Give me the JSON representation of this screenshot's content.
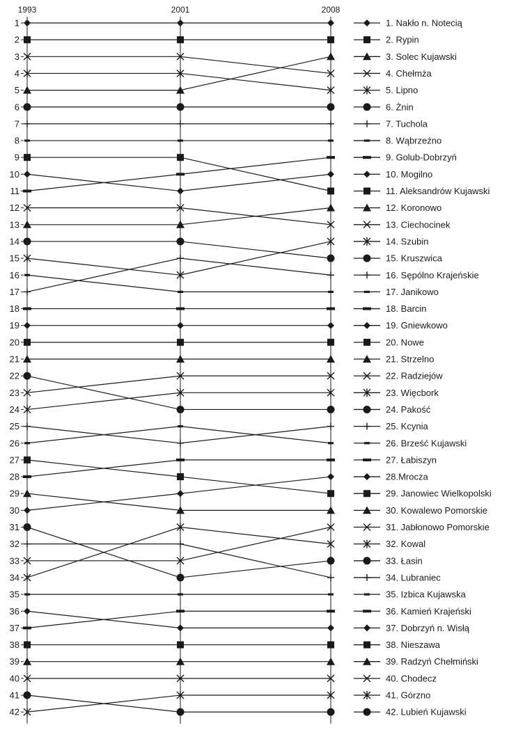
{
  "chart_data": {
    "type": "line",
    "x": [
      "1993",
      "2001",
      "2008"
    ],
    "y_ticks": [
      "1",
      "2",
      "3",
      "4",
      "5",
      "6",
      "7",
      "8",
      "9",
      "10",
      "11",
      "12",
      "13",
      "14",
      "15",
      "16",
      "17",
      "18",
      "19",
      "20",
      "21",
      "22",
      "23",
      "24",
      "25",
      "26",
      "27",
      "28",
      "29",
      "30",
      "31",
      "32",
      "33",
      "34",
      "35",
      "36",
      "37",
      "38",
      "39",
      "40",
      "41",
      "42"
    ],
    "ylim": [
      1,
      42
    ],
    "y_inverted": true,
    "legend_position": "right",
    "series": [
      {
        "name": "1. Nakło n. Notecią",
        "marker": "diamond",
        "values": [
          1,
          1,
          1
        ]
      },
      {
        "name": "2. Rypin",
        "marker": "square",
        "values": [
          2,
          2,
          2
        ]
      },
      {
        "name": "3. Solec Kujawski",
        "marker": "triangle",
        "values": [
          5,
          5,
          3
        ]
      },
      {
        "name": "4. Chełmża",
        "marker": "x",
        "values": [
          3,
          3,
          4
        ]
      },
      {
        "name": "5. Lipno",
        "marker": "asterisk",
        "values": [
          4,
          4,
          5
        ]
      },
      {
        "name": "6. Żnin",
        "marker": "circle",
        "values": [
          6,
          6,
          6
        ]
      },
      {
        "name": "7. Tuchola",
        "marker": "plus",
        "values": [
          7,
          7,
          7
        ]
      },
      {
        "name": "8. Wąbrzeźno",
        "marker": "dash",
        "values": [
          8,
          8,
          8
        ]
      },
      {
        "name": "9. Golub-Dobrzyń",
        "marker": "bar",
        "values": [
          11,
          10,
          9
        ]
      },
      {
        "name": "10. Mogilno",
        "marker": "diamond",
        "values": [
          10,
          11,
          10
        ]
      },
      {
        "name": "11. Aleksandrów Kujawski",
        "marker": "square",
        "values": [
          9,
          9,
          11
        ]
      },
      {
        "name": "12. Koronowo",
        "marker": "triangle",
        "values": [
          13,
          13,
          12
        ]
      },
      {
        "name": "13. Ciechocinek",
        "marker": "x",
        "values": [
          12,
          12,
          13
        ]
      },
      {
        "name": "14. Szubin",
        "marker": "asterisk",
        "values": [
          15,
          16,
          14
        ]
      },
      {
        "name": "15. Kruszwica",
        "marker": "circle",
        "values": [
          14,
          14,
          15
        ]
      },
      {
        "name": "16. Sępólno Krajeńskie",
        "marker": "plus",
        "values": [
          17,
          15,
          16
        ]
      },
      {
        "name": "17. Janikowo",
        "marker": "dash",
        "values": [
          16,
          17,
          17
        ]
      },
      {
        "name": "18. Barcin",
        "marker": "bar",
        "values": [
          18,
          18,
          18
        ]
      },
      {
        "name": "19. Gniewkowo",
        "marker": "diamond",
        "values": [
          19,
          19,
          19
        ]
      },
      {
        "name": "20. Nowe",
        "marker": "square",
        "values": [
          20,
          20,
          20
        ]
      },
      {
        "name": "21. Strzelno",
        "marker": "triangle",
        "values": [
          21,
          21,
          21
        ]
      },
      {
        "name": "22. Radziejów",
        "marker": "x",
        "values": [
          23,
          22,
          22
        ]
      },
      {
        "name": "23. Więcbork",
        "marker": "asterisk",
        "values": [
          24,
          23,
          23
        ]
      },
      {
        "name": "24. Pakość",
        "marker": "circle",
        "values": [
          22,
          24,
          24
        ]
      },
      {
        "name": "25. Kcynia",
        "marker": "plus",
        "values": [
          25,
          26,
          25
        ]
      },
      {
        "name": "26. Brześć Kujawski",
        "marker": "dash",
        "values": [
          26,
          25,
          26
        ]
      },
      {
        "name": "27. Łabiszyn",
        "marker": "bar",
        "values": [
          28,
          27,
          27
        ]
      },
      {
        "name": "28.Mrocza",
        "marker": "diamond",
        "values": [
          30,
          29,
          28
        ]
      },
      {
        "name": "29. Janowiec Wielkopolski",
        "marker": "square",
        "values": [
          27,
          28,
          29
        ]
      },
      {
        "name": "30. Kowalewo Pomorskie",
        "marker": "triangle",
        "values": [
          29,
          30,
          30
        ]
      },
      {
        "name": "31. Jabłonowo Pomorskie",
        "marker": "x",
        "values": [
          33,
          33,
          31
        ]
      },
      {
        "name": "32. Kowal",
        "marker": "asterisk",
        "values": [
          34,
          31,
          32
        ]
      },
      {
        "name": "33. Łasin",
        "marker": "circle",
        "values": [
          31,
          34,
          33
        ]
      },
      {
        "name": "34. Lubraniec",
        "marker": "plus",
        "values": [
          32,
          32,
          34
        ]
      },
      {
        "name": "35. Izbica Kujawska",
        "marker": "dash",
        "values": [
          35,
          35,
          35
        ]
      },
      {
        "name": "36. Kamień Krajeński",
        "marker": "bar",
        "values": [
          37,
          36,
          36
        ]
      },
      {
        "name": "37. Dobrzyń n. Wisłą",
        "marker": "diamond",
        "values": [
          36,
          37,
          37
        ]
      },
      {
        "name": "38. Nieszawa",
        "marker": "square",
        "values": [
          38,
          38,
          38
        ]
      },
      {
        "name": "39. Radzyń Chełmiński",
        "marker": "triangle",
        "values": [
          39,
          39,
          39
        ]
      },
      {
        "name": "40. Chodecz",
        "marker": "x",
        "values": [
          40,
          40,
          40
        ]
      },
      {
        "name": "41. Górzno",
        "marker": "asterisk",
        "values": [
          42,
          41,
          41
        ]
      },
      {
        "name": "42. Lubień Kujawski",
        "marker": "circle",
        "values": [
          41,
          42,
          42
        ]
      }
    ]
  }
}
